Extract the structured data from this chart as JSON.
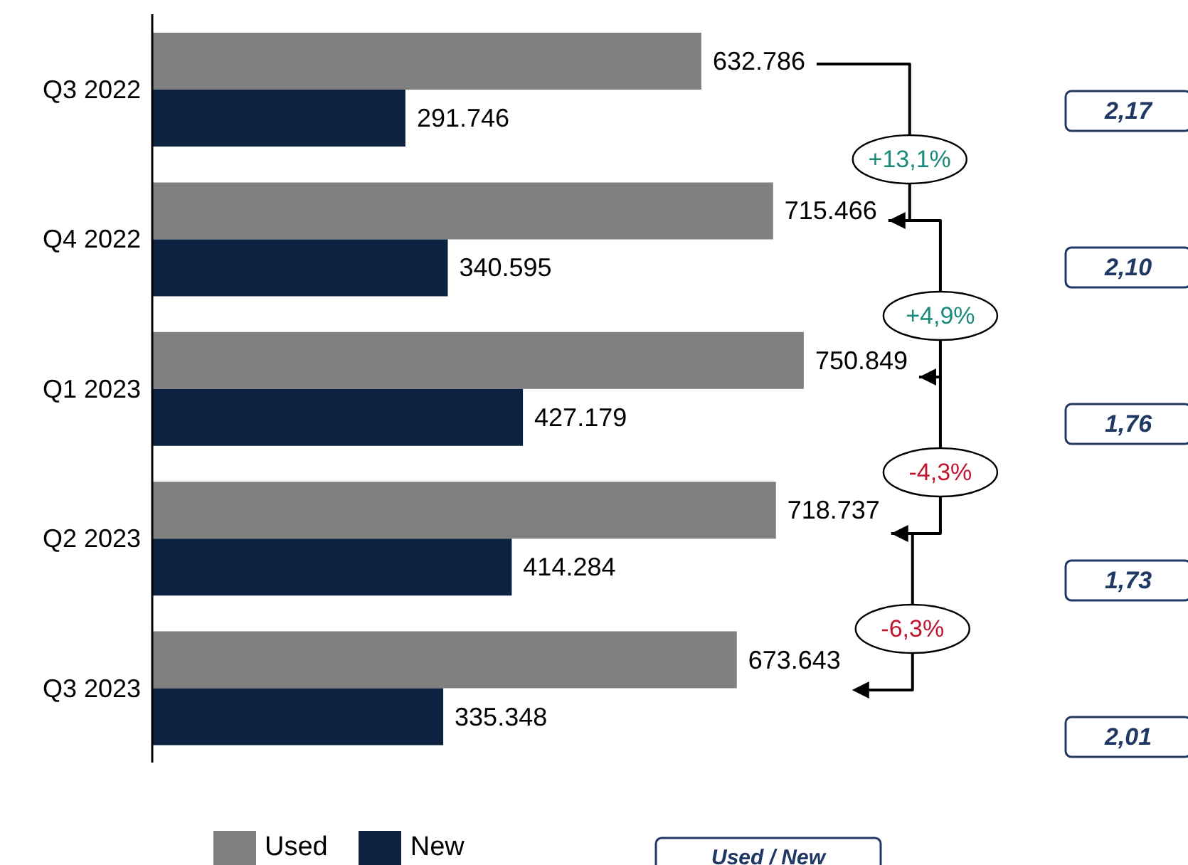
{
  "chart_data": {
    "type": "bar",
    "orientation": "horizontal",
    "categories": [
      "Q3 2022",
      "Q4 2022",
      "Q1 2023",
      "Q2 2023",
      "Q3 2023"
    ],
    "series": [
      {
        "name": "Used",
        "color": "#808080",
        "values": [
          632786,
          715466,
          750849,
          718737,
          673643
        ],
        "value_labels": [
          "632.786",
          "715.466",
          "750.849",
          "718.737",
          "673.643"
        ]
      },
      {
        "name": "New",
        "color": "#0d2240",
        "values": [
          291746,
          340595,
          427179,
          414284,
          335348
        ],
        "value_labels": [
          "291.746",
          "340.595",
          "427.179",
          "414.284",
          "335.348"
        ]
      }
    ],
    "legend": "bottom",
    "annotations": [
      "+13,1%",
      "+4,9%",
      "-4,3%",
      "-6,3%",
      "2,17",
      "2,10",
      "1,76",
      "1,73",
      "2,01",
      "Used / New"
    ]
  }
}
